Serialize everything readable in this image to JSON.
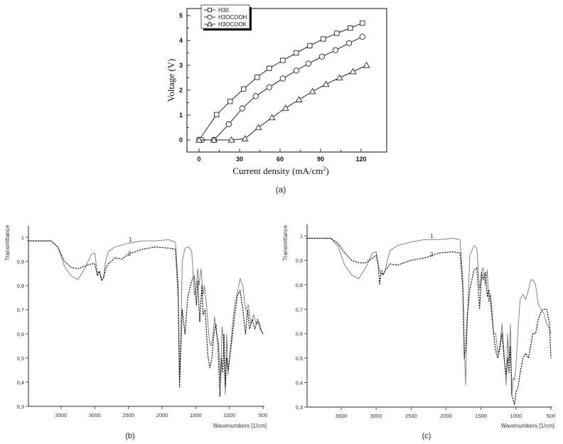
{
  "chart_data": [
    {
      "id": "a",
      "type": "line",
      "caption": "(a)",
      "xlabel": "Current density (mA/cm²)",
      "ylabel": "Voltage (V)",
      "xlim": [
        -12,
        138
      ],
      "ylim": [
        -0.5,
        5.3
      ],
      "xticks": [
        0,
        30,
        60,
        90,
        120
      ],
      "yticks": [
        0,
        1,
        2,
        3,
        4,
        5
      ],
      "grid": false,
      "legend_position": "upper-left",
      "series": [
        {
          "name": "H30",
          "marker": "square",
          "x": [
            0,
            13,
            23,
            33,
            43,
            52,
            62,
            72,
            82,
            92,
            102,
            112,
            121
          ],
          "y": [
            0,
            1.02,
            1.55,
            2.05,
            2.52,
            2.88,
            3.2,
            3.5,
            3.79,
            4.06,
            4.29,
            4.5,
            4.7
          ]
        },
        {
          "name": "H3OCOOH",
          "marker": "circle",
          "x": [
            2,
            11,
            22,
            32,
            42,
            52,
            62,
            72,
            81,
            91,
            101,
            111,
            121
          ],
          "y": [
            0,
            0,
            0.63,
            1.27,
            1.76,
            2.12,
            2.47,
            2.79,
            3.07,
            3.35,
            3.61,
            3.89,
            4.15
          ]
        },
        {
          "name": "H3OCOOK",
          "marker": "triangle",
          "x": [
            0,
            11,
            24,
            34,
            44,
            54,
            64,
            74,
            84,
            94,
            104,
            114,
            124
          ],
          "y": [
            0,
            0,
            0,
            0.05,
            0.5,
            0.9,
            1.28,
            1.62,
            1.95,
            2.24,
            2.5,
            2.75,
            3.0
          ]
        }
      ]
    },
    {
      "id": "b",
      "type": "line",
      "caption": "(b)",
      "xlabel": "Wavenumbers [1/cm]",
      "ylabel": "Transmittance",
      "xlim": [
        4000,
        500
      ],
      "ylim": [
        0.3,
        1.05
      ],
      "xticks": [
        3500,
        3000,
        2500,
        2000,
        1500,
        1000,
        500
      ],
      "yticks": [
        0.3,
        0.4,
        0.5,
        0.6,
        0.7,
        0.8,
        0.9,
        1
      ],
      "ytick_labels": [
        "0,3",
        "0,4",
        "0,5",
        "0,6",
        "0,7",
        "0,8",
        "0,9",
        "1"
      ],
      "grid": false,
      "series": [
        {
          "name": "1",
          "style": "solid",
          "x": [
            4000,
            3800,
            3650,
            3550,
            3450,
            3350,
            3250,
            3150,
            3050,
            3000,
            2960,
            2930,
            2900,
            2870,
            2840,
            2800,
            2700,
            2500,
            2300,
            2100,
            1900,
            1800,
            1760,
            1740,
            1720,
            1700,
            1660,
            1600,
            1560,
            1520,
            1490,
            1470,
            1450,
            1420,
            1390,
            1370,
            1340,
            1300,
            1270,
            1240,
            1220,
            1190,
            1160,
            1130,
            1110,
            1090,
            1060,
            1040,
            1020,
            990,
            960,
            920,
            880,
            840,
            800,
            760,
            720,
            680,
            640,
            600,
            560,
            520,
            500
          ],
          "y": [
            0.985,
            0.985,
            0.985,
            0.96,
            0.88,
            0.84,
            0.825,
            0.87,
            0.93,
            0.935,
            0.85,
            0.86,
            0.83,
            0.835,
            0.9,
            0.94,
            0.96,
            0.975,
            0.985,
            0.985,
            0.99,
            0.98,
            0.8,
            0.4,
            0.6,
            0.9,
            0.955,
            0.96,
            0.94,
            0.76,
            0.8,
            0.87,
            0.8,
            0.87,
            0.76,
            0.8,
            0.72,
            0.58,
            0.55,
            0.6,
            0.67,
            0.6,
            0.56,
            0.4,
            0.63,
            0.58,
            0.35,
            0.6,
            0.43,
            0.52,
            0.62,
            0.72,
            0.77,
            0.83,
            0.8,
            0.7,
            0.72,
            0.64,
            0.68,
            0.64,
            0.65,
            0.61,
            0.6
          ]
        },
        {
          "name": "2",
          "style": "dashed",
          "x": [
            4000,
            3800,
            3650,
            3550,
            3450,
            3350,
            3250,
            3150,
            3050,
            3000,
            2960,
            2930,
            2900,
            2870,
            2840,
            2800,
            2700,
            2600,
            2500,
            2300,
            2100,
            1900,
            1800,
            1760,
            1740,
            1720,
            1700,
            1660,
            1620,
            1560,
            1520,
            1490,
            1470,
            1440,
            1410,
            1390,
            1360,
            1320,
            1290,
            1260,
            1230,
            1200,
            1170,
            1140,
            1120,
            1100,
            1080,
            1060,
            1040,
            1020,
            1000,
            960,
            920,
            880,
            840,
            800,
            760,
            730,
            700,
            660,
            620,
            580,
            540,
            500
          ],
          "y": [
            0.985,
            0.985,
            0.985,
            0.96,
            0.9,
            0.875,
            0.87,
            0.88,
            0.89,
            0.89,
            0.84,
            0.86,
            0.82,
            0.83,
            0.87,
            0.89,
            0.915,
            0.91,
            0.93,
            0.95,
            0.96,
            0.955,
            0.95,
            0.75,
            0.38,
            0.55,
            0.7,
            0.6,
            0.75,
            0.82,
            0.84,
            0.72,
            0.82,
            0.65,
            0.8,
            0.68,
            0.7,
            0.51,
            0.46,
            0.5,
            0.6,
            0.64,
            0.55,
            0.34,
            0.5,
            0.44,
            0.6,
            0.38,
            0.5,
            0.45,
            0.49,
            0.58,
            0.68,
            0.76,
            0.78,
            0.7,
            0.6,
            0.7,
            0.62,
            0.66,
            0.62,
            0.66,
            0.62,
            0.6
          ]
        }
      ]
    },
    {
      "id": "c",
      "type": "line",
      "caption": "(c)",
      "xlabel": "Wavenumbers [1/cm]",
      "ylabel": "Transmittance",
      "xlim": [
        4000,
        500
      ],
      "ylim": [
        0.3,
        1.05
      ],
      "xticks": [
        3500,
        3000,
        2500,
        2000,
        1500,
        1000,
        500
      ],
      "yticks": [
        0.3,
        0.4,
        0.5,
        0.6,
        0.7,
        0.8,
        0.9,
        1
      ],
      "ytick_labels": [
        "0,3",
        "0,4",
        "0,5",
        "0,6",
        "0,7",
        "0,8",
        "0,9",
        "1"
      ],
      "grid": false,
      "series": [
        {
          "name": "1",
          "style": "solid",
          "x": [
            4000,
            3800,
            3650,
            3550,
            3450,
            3350,
            3250,
            3150,
            3050,
            3000,
            2970,
            2940,
            2920,
            2900,
            2870,
            2840,
            2800,
            2700,
            2500,
            2300,
            2100,
            1900,
            1800,
            1760,
            1740,
            1720,
            1700,
            1660,
            1600,
            1560,
            1520,
            1490,
            1470,
            1440,
            1410,
            1390,
            1360,
            1320,
            1290,
            1260,
            1230,
            1200,
            1170,
            1140,
            1120,
            1100,
            1080,
            1060,
            1040,
            1020,
            1000,
            970,
            940,
            900,
            860,
            820,
            790,
            760,
            720,
            680,
            640,
            600,
            560,
            520,
            500
          ],
          "y": [
            0.99,
            0.99,
            0.99,
            0.96,
            0.88,
            0.84,
            0.825,
            0.87,
            0.93,
            0.935,
            0.88,
            0.85,
            0.86,
            0.84,
            0.86,
            0.9,
            0.94,
            0.96,
            0.975,
            0.985,
            0.985,
            0.99,
            0.985,
            0.82,
            0.55,
            0.39,
            0.62,
            0.92,
            0.96,
            0.95,
            0.78,
            0.86,
            0.87,
            0.8,
            0.86,
            0.73,
            0.76,
            0.6,
            0.6,
            0.52,
            0.55,
            0.64,
            0.52,
            0.39,
            0.6,
            0.48,
            0.64,
            0.35,
            0.42,
            0.41,
            0.47,
            0.62,
            0.74,
            0.76,
            0.74,
            0.78,
            0.82,
            0.82,
            0.8,
            0.72,
            0.7,
            0.68,
            0.64,
            0.62,
            0.6
          ]
        },
        {
          "name": "2",
          "style": "dashed",
          "x": [
            4000,
            3800,
            3650,
            3550,
            3450,
            3350,
            3250,
            3150,
            3050,
            3000,
            2970,
            2950,
            2930,
            2900,
            2870,
            2840,
            2800,
            2700,
            2500,
            2300,
            2100,
            1900,
            1800,
            1760,
            1740,
            1720,
            1700,
            1660,
            1600,
            1560,
            1520,
            1490,
            1470,
            1440,
            1410,
            1390,
            1360,
            1320,
            1290,
            1260,
            1230,
            1200,
            1170,
            1140,
            1120,
            1100,
            1080,
            1060,
            1040,
            1020,
            1000,
            970,
            940,
            900,
            860,
            820,
            790,
            760,
            720,
            680,
            640,
            600,
            560,
            520,
            500
          ],
          "y": [
            0.99,
            0.99,
            0.99,
            0.97,
            0.93,
            0.9,
            0.89,
            0.89,
            0.91,
            0.92,
            0.88,
            0.8,
            0.85,
            0.84,
            0.86,
            0.87,
            0.885,
            0.88,
            0.9,
            0.91,
            0.93,
            0.935,
            0.93,
            0.78,
            0.5,
            0.54,
            0.66,
            0.78,
            0.86,
            0.87,
            0.7,
            0.85,
            0.82,
            0.85,
            0.75,
            0.78,
            0.72,
            0.6,
            0.53,
            0.5,
            0.54,
            0.6,
            0.5,
            0.43,
            0.5,
            0.44,
            0.55,
            0.35,
            0.33,
            0.31,
            0.36,
            0.38,
            0.44,
            0.5,
            0.52,
            0.5,
            0.55,
            0.6,
            0.6,
            0.66,
            0.69,
            0.7,
            0.7,
            0.64,
            0.5
          ]
        }
      ]
    }
  ],
  "figure": {
    "a": {
      "caption": "(a)",
      "xlabel_main": "Current density (mA/cm",
      "xlabel_sup": "2",
      "xlabel_tail": ")",
      "ylabel": "Voltage (V)"
    },
    "b": {
      "caption": "(b)",
      "ylabel": "Transmittance",
      "xlabel": "Wavenumbers [1/cm]",
      "label1": "1",
      "label2": "2"
    },
    "c": {
      "caption": "(c)",
      "ylabel": "Transmittance",
      "xlabel": "Wavenumbers [1/cm]",
      "label1": "1",
      "label2": "2"
    }
  }
}
